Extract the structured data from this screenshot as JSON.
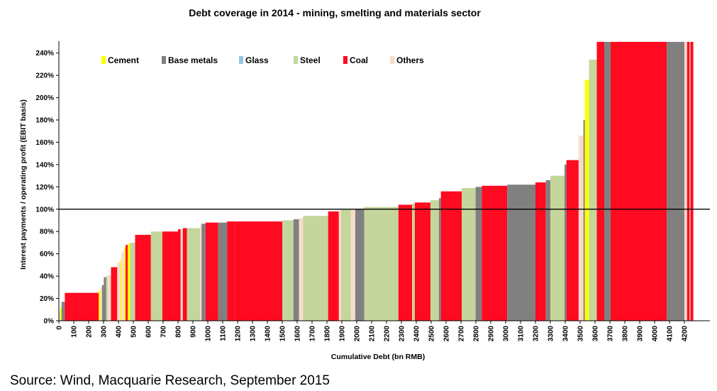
{
  "chart_data": {
    "type": "bar",
    "variant": "variable-width (cumulative)",
    "title": "Debt coverage in 2014 - mining, smelting and materials sector",
    "xlabel": "Cumulative Debt (bn RMB)",
    "ylabel": "Interest payments / operating profit (EBIT basis)",
    "xlim": [
      0,
      4250
    ],
    "ylim": [
      0,
      250
    ],
    "x_ticks": [
      0,
      100,
      200,
      300,
      400,
      500,
      600,
      700,
      800,
      900,
      1000,
      1100,
      1200,
      1300,
      1400,
      1500,
      1600,
      1700,
      1800,
      1900,
      2000,
      2100,
      2200,
      2300,
      2400,
      2500,
      2600,
      2700,
      2800,
      2900,
      3000,
      3100,
      3200,
      3300,
      3400,
      3500,
      3600,
      3700,
      3800,
      3900,
      4000,
      4100,
      4200
    ],
    "y_ticks": [
      0,
      20,
      40,
      60,
      80,
      100,
      120,
      140,
      160,
      180,
      200,
      220,
      240
    ],
    "y_tick_format": "percent",
    "reference_line": 100,
    "legend_position": "top-left",
    "categories": {
      "Cement": "#ffff00",
      "Base metals": "#808080",
      "Glass": "#93c5de",
      "Steel": "#c4d69b",
      "Coal": "#ff0a20",
      "Others": "#f8dccb"
    },
    "legend": [
      "Cement",
      "Base metals",
      "Glass",
      "Steel",
      "Coal",
      "Others"
    ],
    "bars": [
      {
        "x0": 0,
        "x1": 8,
        "value": 8,
        "category": "Others"
      },
      {
        "x0": 8,
        "x1": 18,
        "value": 12,
        "category": "Cement"
      },
      {
        "x0": 18,
        "x1": 40,
        "value": 17,
        "category": "Base metals"
      },
      {
        "x0": 40,
        "x1": 268,
        "value": 25,
        "category": "Coal"
      },
      {
        "x0": 268,
        "x1": 280,
        "value": 27,
        "category": "Cement"
      },
      {
        "x0": 280,
        "x1": 290,
        "value": 30,
        "category": "Others"
      },
      {
        "x0": 290,
        "x1": 302,
        "value": 32,
        "category": "Base metals"
      },
      {
        "x0": 302,
        "x1": 318,
        "value": 39,
        "category": "Base metals"
      },
      {
        "x0": 318,
        "x1": 328,
        "value": 40,
        "category": "Steel"
      },
      {
        "x0": 328,
        "x1": 350,
        "value": 41,
        "category": "Others"
      },
      {
        "x0": 350,
        "x1": 392,
        "value": 48,
        "category": "Coal"
      },
      {
        "x0": 392,
        "x1": 412,
        "value": 52,
        "category": "Others"
      },
      {
        "x0": 412,
        "x1": 420,
        "value": 55,
        "category": "Cement"
      },
      {
        "x0": 420,
        "x1": 432,
        "value": 61,
        "category": "Others"
      },
      {
        "x0": 432,
        "x1": 440,
        "value": 63,
        "category": "Others"
      },
      {
        "x0": 440,
        "x1": 448,
        "value": 66,
        "category": "Cement"
      },
      {
        "x0": 448,
        "x1": 462,
        "value": 68,
        "category": "Coal"
      },
      {
        "x0": 462,
        "x1": 478,
        "value": 69,
        "category": "Cement"
      },
      {
        "x0": 478,
        "x1": 512,
        "value": 70,
        "category": "Steel"
      },
      {
        "x0": 512,
        "x1": 618,
        "value": 77,
        "category": "Coal"
      },
      {
        "x0": 618,
        "x1": 695,
        "value": 80,
        "category": "Steel"
      },
      {
        "x0": 695,
        "x1": 800,
        "value": 80,
        "category": "Coal"
      },
      {
        "x0": 800,
        "x1": 818,
        "value": 82,
        "category": "Coal"
      },
      {
        "x0": 818,
        "x1": 832,
        "value": 82,
        "category": "Others"
      },
      {
        "x0": 832,
        "x1": 860,
        "value": 83,
        "category": "Coal"
      },
      {
        "x0": 860,
        "x1": 948,
        "value": 83,
        "category": "Steel"
      },
      {
        "x0": 948,
        "x1": 958,
        "value": 86,
        "category": "Others"
      },
      {
        "x0": 958,
        "x1": 985,
        "value": 87,
        "category": "Base metals"
      },
      {
        "x0": 985,
        "x1": 1070,
        "value": 88,
        "category": "Coal"
      },
      {
        "x0": 1070,
        "x1": 1130,
        "value": 88,
        "category": "Base metals"
      },
      {
        "x0": 1130,
        "x1": 1185,
        "value": 89,
        "category": "Coal"
      },
      {
        "x0": 1185,
        "x1": 1500,
        "value": 89,
        "category": "Coal"
      },
      {
        "x0": 1500,
        "x1": 1575,
        "value": 90,
        "category": "Steel"
      },
      {
        "x0": 1575,
        "x1": 1612,
        "value": 91,
        "category": "Base metals"
      },
      {
        "x0": 1612,
        "x1": 1640,
        "value": 92,
        "category": "Others"
      },
      {
        "x0": 1640,
        "x1": 1808,
        "value": 94,
        "category": "Steel"
      },
      {
        "x0": 1808,
        "x1": 1880,
        "value": 98,
        "category": "Coal"
      },
      {
        "x0": 1880,
        "x1": 1895,
        "value": 99,
        "category": "Others"
      },
      {
        "x0": 1895,
        "x1": 1960,
        "value": 100,
        "category": "Steel"
      },
      {
        "x0": 1960,
        "x1": 1990,
        "value": 100,
        "category": "Others"
      },
      {
        "x0": 1990,
        "x1": 2050,
        "value": 100,
        "category": "Base metals"
      },
      {
        "x0": 2050,
        "x1": 2280,
        "value": 102,
        "category": "Steel"
      },
      {
        "x0": 2280,
        "x1": 2372,
        "value": 104,
        "category": "Coal"
      },
      {
        "x0": 2372,
        "x1": 2390,
        "value": 105,
        "category": "Steel"
      },
      {
        "x0": 2390,
        "x1": 2495,
        "value": 106,
        "category": "Coal"
      },
      {
        "x0": 2495,
        "x1": 2552,
        "value": 108,
        "category": "Steel"
      },
      {
        "x0": 2552,
        "x1": 2565,
        "value": 110,
        "category": "Base metals"
      },
      {
        "x0": 2565,
        "x1": 2705,
        "value": 116,
        "category": "Coal"
      },
      {
        "x0": 2705,
        "x1": 2798,
        "value": 119,
        "category": "Steel"
      },
      {
        "x0": 2798,
        "x1": 2840,
        "value": 120,
        "category": "Base metals"
      },
      {
        "x0": 2840,
        "x1": 3010,
        "value": 121,
        "category": "Coal"
      },
      {
        "x0": 3010,
        "x1": 3200,
        "value": 122,
        "category": "Base metals"
      },
      {
        "x0": 3200,
        "x1": 3270,
        "value": 124,
        "category": "Coal"
      },
      {
        "x0": 3270,
        "x1": 3300,
        "value": 126,
        "category": "Base metals"
      },
      {
        "x0": 3300,
        "x1": 3395,
        "value": 130,
        "category": "Steel"
      },
      {
        "x0": 3395,
        "x1": 3408,
        "value": 140,
        "category": "Base metals"
      },
      {
        "x0": 3408,
        "x1": 3490,
        "value": 144,
        "category": "Coal"
      },
      {
        "x0": 3490,
        "x1": 3522,
        "value": 166,
        "category": "Others"
      },
      {
        "x0": 3522,
        "x1": 3532,
        "value": 180,
        "category": "Base metals"
      },
      {
        "x0": 3532,
        "x1": 3560,
        "value": 216,
        "category": "Cement"
      },
      {
        "x0": 3560,
        "x1": 3612,
        "value": 234,
        "category": "Steel"
      },
      {
        "x0": 3612,
        "x1": 3662,
        "value": 250,
        "category": "Coal"
      },
      {
        "x0": 3662,
        "x1": 3705,
        "value": 250,
        "category": "Base metals"
      },
      {
        "x0": 3705,
        "x1": 4082,
        "value": 250,
        "category": "Coal"
      },
      {
        "x0": 4082,
        "x1": 4200,
        "value": 250,
        "category": "Base metals"
      },
      {
        "x0": 4200,
        "x1": 4218,
        "value": 250,
        "category": "Others"
      },
      {
        "x0": 4218,
        "x1": 4235,
        "value": 250,
        "category": "Coal"
      },
      {
        "x0": 4235,
        "x1": 4241,
        "value": 250,
        "category": "Others"
      },
      {
        "x0": 4241,
        "x1": 4260,
        "value": 250,
        "category": "Coal"
      }
    ]
  },
  "source": "Source: Wind, Macquarie Research, September 2015"
}
